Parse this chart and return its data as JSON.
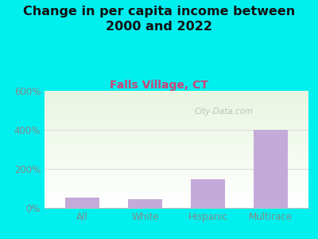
{
  "title": "Change in per capita income between\n2000 and 2022",
  "subtitle": "Falls Village, CT",
  "categories": [
    "All",
    "White",
    "Hispanic",
    "Multirace"
  ],
  "values": [
    55,
    45,
    145,
    400
  ],
  "bar_color": "#c4aad8",
  "background_color": "#00f0f0",
  "plot_bg_top": "#e8f5e0",
  "plot_bg_bottom": "#ffffff",
  "title_color": "#111111",
  "subtitle_color": "#cc4477",
  "tick_label_color": "#888888",
  "ylim": [
    0,
    600
  ],
  "yticks": [
    0,
    200,
    400,
    600
  ],
  "ytick_labels": [
    "0%",
    "200%",
    "400%",
    "600%"
  ],
  "grid_line_color": "#dddddd",
  "watermark": "City-Data.com",
  "title_fontsize": 11.5,
  "subtitle_fontsize": 10
}
